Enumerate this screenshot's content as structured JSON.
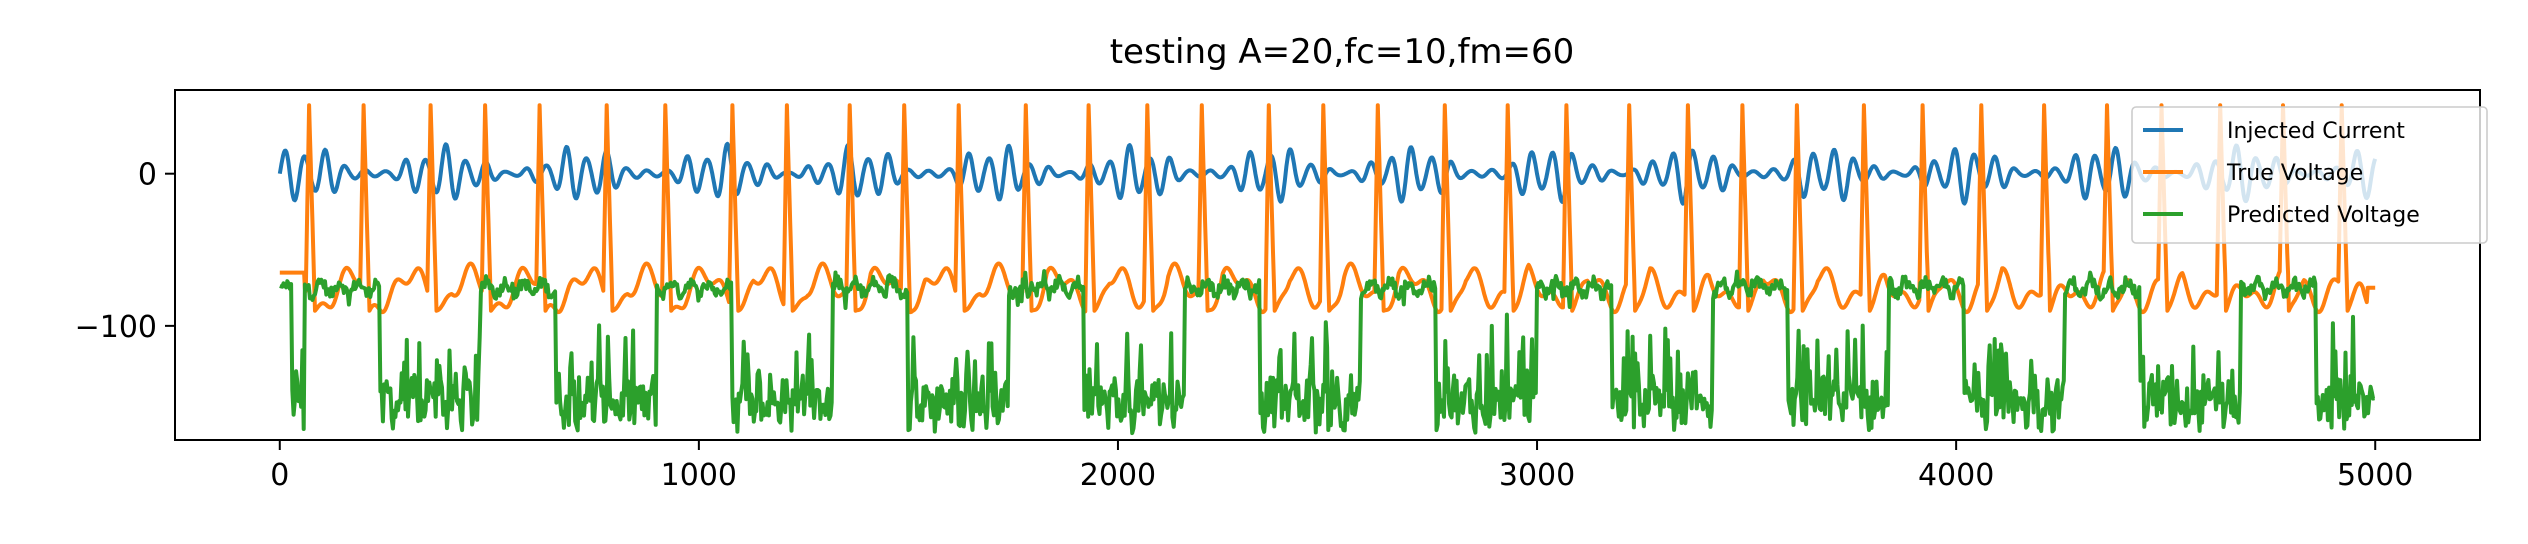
{
  "chart_data": {
    "type": "line",
    "title": "testing A=20,fc=10,fm=60",
    "xlabel": "",
    "ylabel": "",
    "xlim": [
      -250,
      5250
    ],
    "ylim": [
      -175,
      55
    ],
    "xticks": [
      0,
      1000,
      2000,
      3000,
      4000,
      5000
    ],
    "xtick_labels": [
      "0",
      "1000",
      "2000",
      "3000",
      "4000",
      "5000"
    ],
    "yticks": [
      0,
      -100
    ],
    "ytick_labels": [
      "0",
      "−100"
    ],
    "grid": false,
    "legend_position": "upper right",
    "spike_times": [
      70,
      200,
      360,
      490,
      620,
      780,
      920,
      1080,
      1210,
      1360,
      1490,
      1620,
      1780,
      1930,
      2070,
      2200,
      2360,
      2490,
      2620,
      2780,
      2930,
      3070,
      3220,
      3360,
      3490,
      3620,
      3780,
      3920,
      4060,
      4210,
      4360,
      4490,
      4630,
      4780,
      4920
    ],
    "series": [
      {
        "name": "Injected Current",
        "color": "#1f77b4",
        "sample_x": [
          0,
          50,
          100,
          150,
          200,
          250,
          300,
          350,
          400,
          450,
          500,
          600,
          700,
          800,
          900,
          1000,
          1200,
          1400,
          1600,
          1800,
          2000,
          2500,
          3000,
          3500,
          4000,
          4500,
          5000
        ],
        "sample_y": [
          0,
          10,
          -15,
          15,
          -10,
          5,
          -2,
          18,
          -10,
          15,
          -12,
          10,
          -15,
          18,
          -8,
          12,
          -14,
          15,
          -10,
          16,
          -12,
          14,
          -10,
          17,
          -12,
          13,
          -8
        ],
        "amplitude": 20,
        "fc": 10,
        "fm": 60
      },
      {
        "name": "True Voltage",
        "color": "#ff7f0e",
        "spike_peak": 45,
        "rest_min": -95,
        "rest_max": -65,
        "start_value": -65,
        "end_value": -75
      },
      {
        "name": "Predicted Voltage",
        "color": "#2ca02c",
        "high_level": -75,
        "low_level": -150,
        "noise_amplitude": 15,
        "start_value": -70,
        "end_value": -145
      }
    ]
  }
}
